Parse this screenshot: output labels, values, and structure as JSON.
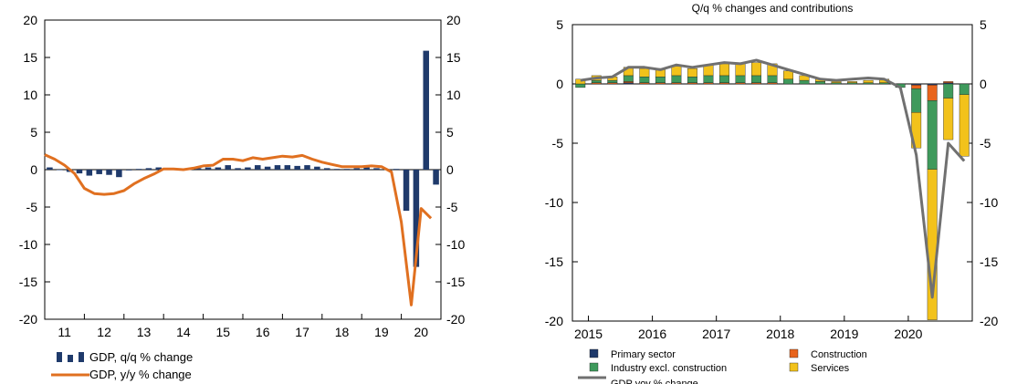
{
  "chart_data": [
    {
      "type": "bar",
      "title": "",
      "xlabel": "",
      "ylabel": "",
      "ylim": [
        -20,
        20
      ],
      "yticks": [
        20,
        15,
        10,
        5,
        0,
        -5,
        -10,
        -15,
        -20
      ],
      "ytick_labels": [
        "20",
        "15",
        "10",
        "5",
        "0",
        "-5",
        "-10",
        "-15",
        "-20"
      ],
      "xlim": [
        2011.0,
        2021.0
      ],
      "x_tick_labels": [
        "11",
        "12",
        "13",
        "14",
        "15",
        "16",
        "17",
        "18",
        "19",
        "20"
      ],
      "x_tick_positions": [
        2011.5,
        2012.5,
        2013.5,
        2014.5,
        2015.5,
        2016.5,
        2017.5,
        2018.5,
        2019.5,
        2020.5
      ],
      "grid": false,
      "legend_position": "bottom-left",
      "series": [
        {
          "name": "GDP, q/q % change",
          "kind": "bar",
          "color": "#1f3a6b",
          "x": [
            2011.125,
            2011.375,
            2011.625,
            2011.875,
            2012.125,
            2012.375,
            2012.625,
            2012.875,
            2013.125,
            2013.375,
            2013.625,
            2013.875,
            2014.125,
            2014.375,
            2014.625,
            2014.875,
            2015.125,
            2015.375,
            2015.625,
            2015.875,
            2016.125,
            2016.375,
            2016.625,
            2016.875,
            2017.125,
            2017.375,
            2017.625,
            2017.875,
            2018.125,
            2018.375,
            2018.625,
            2018.875,
            2019.125,
            2019.375,
            2019.625,
            2019.875,
            2020.125,
            2020.375,
            2020.625,
            2020.875
          ],
          "values": [
            0.3,
            0.0,
            -0.3,
            -0.5,
            -0.8,
            -0.6,
            -0.7,
            -1.0,
            -0.1,
            0.1,
            0.2,
            0.3,
            0.1,
            0.1,
            0.0,
            0.2,
            0.3,
            0.3,
            0.6,
            0.2,
            0.3,
            0.6,
            0.4,
            0.6,
            0.6,
            0.5,
            0.6,
            0.4,
            0.2,
            0.1,
            0.1,
            0.2,
            0.3,
            0.2,
            0.1,
            0.1,
            -5.5,
            -13.0,
            15.9,
            -2.0
          ]
        },
        {
          "name": "GDP, y/y % change",
          "kind": "line",
          "color": "#e07020",
          "x": [
            2011.0,
            2011.25,
            2011.5,
            2011.75,
            2012.0,
            2012.25,
            2012.5,
            2012.75,
            2013.0,
            2013.25,
            2013.5,
            2013.75,
            2014.0,
            2014.25,
            2014.5,
            2014.75,
            2015.0,
            2015.25,
            2015.5,
            2015.75,
            2016.0,
            2016.25,
            2016.5,
            2016.75,
            2017.0,
            2017.25,
            2017.5,
            2017.75,
            2018.0,
            2018.25,
            2018.5,
            2018.75,
            2019.0,
            2019.25,
            2019.5,
            2019.75,
            2020.0,
            2020.25,
            2020.5,
            2020.75
          ],
          "values": [
            2.0,
            1.4,
            0.6,
            -0.5,
            -2.5,
            -3.2,
            -3.3,
            -3.2,
            -2.8,
            -1.9,
            -1.2,
            -0.6,
            0.1,
            0.1,
            0.0,
            0.2,
            0.5,
            0.6,
            1.4,
            1.4,
            1.2,
            1.6,
            1.4,
            1.6,
            1.8,
            1.7,
            1.9,
            1.4,
            1.0,
            0.7,
            0.4,
            0.4,
            0.4,
            0.5,
            0.4,
            -0.3,
            -7.0,
            -18.1,
            -5.2,
            -6.5
          ]
        }
      ]
    },
    {
      "type": "bar",
      "title": "Q/q % changes and contributions",
      "xlabel": "",
      "ylabel": "",
      "ylim": [
        -20,
        5
      ],
      "yticks": [
        5,
        0,
        -5,
        -10,
        -15,
        -20
      ],
      "ytick_labels": [
        "5",
        "0",
        "-5",
        "-10",
        "-15",
        "-20"
      ],
      "xlim": [
        2014.75,
        2021.0
      ],
      "x_tick_labels": [
        "2015",
        "2016",
        "2017",
        "2018",
        "2019",
        "2020"
      ],
      "x_tick_positions": [
        2015.0,
        2016.0,
        2017.0,
        2018.0,
        2019.0,
        2020.0
      ],
      "grid": false,
      "stacked": true,
      "legend_position": "bottom",
      "x": [
        2014.875,
        2015.125,
        2015.375,
        2015.625,
        2015.875,
        2016.125,
        2016.375,
        2016.625,
        2016.875,
        2017.125,
        2017.375,
        2017.625,
        2017.875,
        2018.125,
        2018.375,
        2018.625,
        2018.875,
        2019.125,
        2019.375,
        2019.625,
        2019.875,
        2020.125,
        2020.375,
        2020.625,
        2020.875
      ],
      "series": [
        {
          "name": "Primary sector",
          "kind": "bar",
          "color": "#1f3a6b",
          "values": [
            0.0,
            0.0,
            0.0,
            0.1,
            0.0,
            0.0,
            0.0,
            0.0,
            0.0,
            0.0,
            0.0,
            0.0,
            0.0,
            0.0,
            0.0,
            0.0,
            0.0,
            0.0,
            0.0,
            0.0,
            0.0,
            -0.1,
            -0.1,
            0.1,
            0.0
          ]
        },
        {
          "name": "Construction",
          "kind": "bar",
          "color": "#e8641c",
          "values": [
            0.0,
            0.1,
            0.1,
            0.1,
            0.1,
            0.1,
            0.1,
            0.1,
            0.1,
            0.1,
            0.1,
            0.1,
            0.1,
            0.0,
            0.0,
            0.0,
            0.0,
            0.0,
            0.0,
            0.0,
            0.0,
            -0.3,
            -1.3,
            0.1,
            0.0
          ]
        },
        {
          "name": "Industry excl. construction",
          "kind": "bar",
          "color": "#3f9a5c",
          "values": [
            -0.3,
            0.2,
            0.2,
            0.5,
            0.5,
            0.5,
            0.6,
            0.5,
            0.6,
            0.6,
            0.6,
            0.6,
            0.6,
            0.4,
            0.3,
            0.2,
            0.1,
            0.1,
            0.1,
            0.1,
            -0.3,
            -2.0,
            -5.8,
            -1.2,
            -0.9
          ]
        },
        {
          "name": "Services",
          "kind": "bar",
          "color": "#f2c21b",
          "values": [
            0.4,
            0.4,
            0.3,
            0.7,
            0.7,
            0.7,
            0.8,
            0.7,
            0.9,
            1.0,
            1.0,
            1.1,
            1.0,
            0.7,
            0.4,
            0.2,
            0.1,
            0.1,
            0.2,
            0.3,
            0.0,
            -3.0,
            -12.7,
            -3.5,
            -5.2
          ]
        },
        {
          "name": "GDP yoy % change",
          "kind": "line",
          "color": "#707070",
          "x": [
            2014.875,
            2015.125,
            2015.375,
            2015.625,
            2015.875,
            2016.125,
            2016.375,
            2016.625,
            2016.875,
            2017.125,
            2017.375,
            2017.625,
            2017.875,
            2018.125,
            2018.375,
            2018.625,
            2018.875,
            2019.125,
            2019.375,
            2019.625,
            2019.875,
            2020.125,
            2020.375,
            2020.625,
            2020.875
          ],
          "values": [
            0.3,
            0.5,
            0.6,
            1.4,
            1.4,
            1.2,
            1.6,
            1.4,
            1.6,
            1.8,
            1.7,
            2.0,
            1.6,
            1.2,
            0.8,
            0.4,
            0.3,
            0.4,
            0.5,
            0.4,
            -0.3,
            -6.0,
            -18.0,
            -5.0,
            -6.5
          ]
        }
      ]
    }
  ]
}
